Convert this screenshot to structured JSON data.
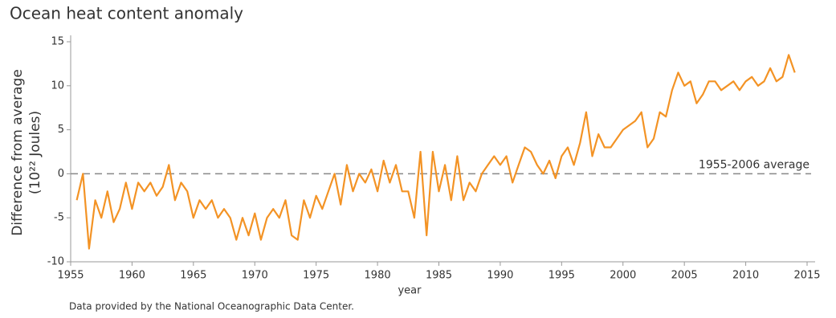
{
  "chart_data": {
    "type": "line",
    "title": "Ocean heat content anomaly",
    "y_label": "Difference from average",
    "y_unit": "(10²² Joules)",
    "x_label": "year",
    "source": "Data provided by the National Oceanographic Data Center.",
    "reference_line": {
      "value": 0,
      "label": "1955-2006 average"
    },
    "xlim": [
      1955,
      2015
    ],
    "xticks": [
      1955,
      1960,
      1965,
      1970,
      1975,
      1980,
      1985,
      1990,
      1995,
      2000,
      2005,
      2010,
      2015
    ],
    "ylim": [
      -10,
      15
    ],
    "yticks": [
      -10,
      -5,
      0,
      5,
      10,
      15
    ],
    "grid": false,
    "color": "#f39325",
    "x": [
      1955.5,
      1956,
      1956.5,
      1957,
      1957.5,
      1958,
      1958.5,
      1959,
      1959.5,
      1960,
      1960.5,
      1961,
      1961.5,
      1962,
      1962.5,
      1963,
      1963.5,
      1964,
      1964.5,
      1965,
      1965.5,
      1966,
      1966.5,
      1967,
      1967.5,
      1968,
      1968.5,
      1969,
      1969.5,
      1970,
      1970.5,
      1971,
      1971.5,
      1972,
      1972.5,
      1973,
      1973.5,
      1974,
      1974.5,
      1975,
      1975.5,
      1976,
      1976.5,
      1977,
      1977.5,
      1978,
      1978.5,
      1979,
      1979.5,
      1980,
      1980.5,
      1981,
      1981.5,
      1982,
      1982.5,
      1983,
      1983.5,
      1984,
      1984.5,
      1985,
      1985.5,
      1986,
      1986.5,
      1987,
      1987.5,
      1988,
      1988.5,
      1989,
      1989.5,
      1990,
      1990.5,
      1991,
      1991.5,
      1992,
      1992.5,
      1993,
      1993.5,
      1994,
      1994.5,
      1995,
      1995.5,
      1996,
      1996.5,
      1997,
      1997.5,
      1998,
      1998.5,
      1999,
      1999.5,
      2000,
      2000.5,
      2001,
      2001.5,
      2002,
      2002.5,
      2003,
      2003.5,
      2004,
      2004.5,
      2005,
      2005.5,
      2006,
      2006.5,
      2007,
      2007.5,
      2008,
      2008.5,
      2009,
      2009.5,
      2010,
      2010.5,
      2011,
      2011.5,
      2012,
      2012.5,
      2013,
      2013.5,
      2014
    ],
    "values": [
      -3,
      0,
      -8.5,
      -3,
      -5,
      -2,
      -5.5,
      -4,
      -1,
      -4,
      -1,
      -2,
      -1,
      -2.5,
      -1.5,
      1,
      -3,
      -1,
      -2,
      -5,
      -3,
      -4,
      -3,
      -5,
      -4,
      -5,
      -7.5,
      -5,
      -7,
      -4.5,
      -7.5,
      -5,
      -4,
      -5,
      -3,
      -7,
      -7.5,
      -3,
      -5,
      -2.5,
      -4,
      -2,
      0,
      -3.5,
      1,
      -2,
      0,
      -1,
      0.5,
      -2,
      1.5,
      -1,
      1,
      -2,
      -2,
      -5,
      2.5,
      -7,
      2.5,
      -2,
      1,
      -3,
      2,
      -3,
      -1,
      -2,
      0,
      1,
      2,
      1,
      2,
      -1,
      1,
      3,
      2.5,
      1,
      0,
      1.5,
      -0.5,
      2,
      3,
      1,
      3.5,
      7,
      2,
      4.5,
      3,
      3,
      4,
      5,
      5.5,
      6,
      7,
      3,
      4,
      7,
      6.5,
      9.5,
      11.5,
      10,
      10.5,
      8,
      9,
      10.5,
      10.5,
      9.5,
      10,
      10.5,
      9.5,
      10.5,
      11,
      10,
      10.5,
      12,
      10.5,
      11,
      13.5,
      11.5
    ]
  }
}
